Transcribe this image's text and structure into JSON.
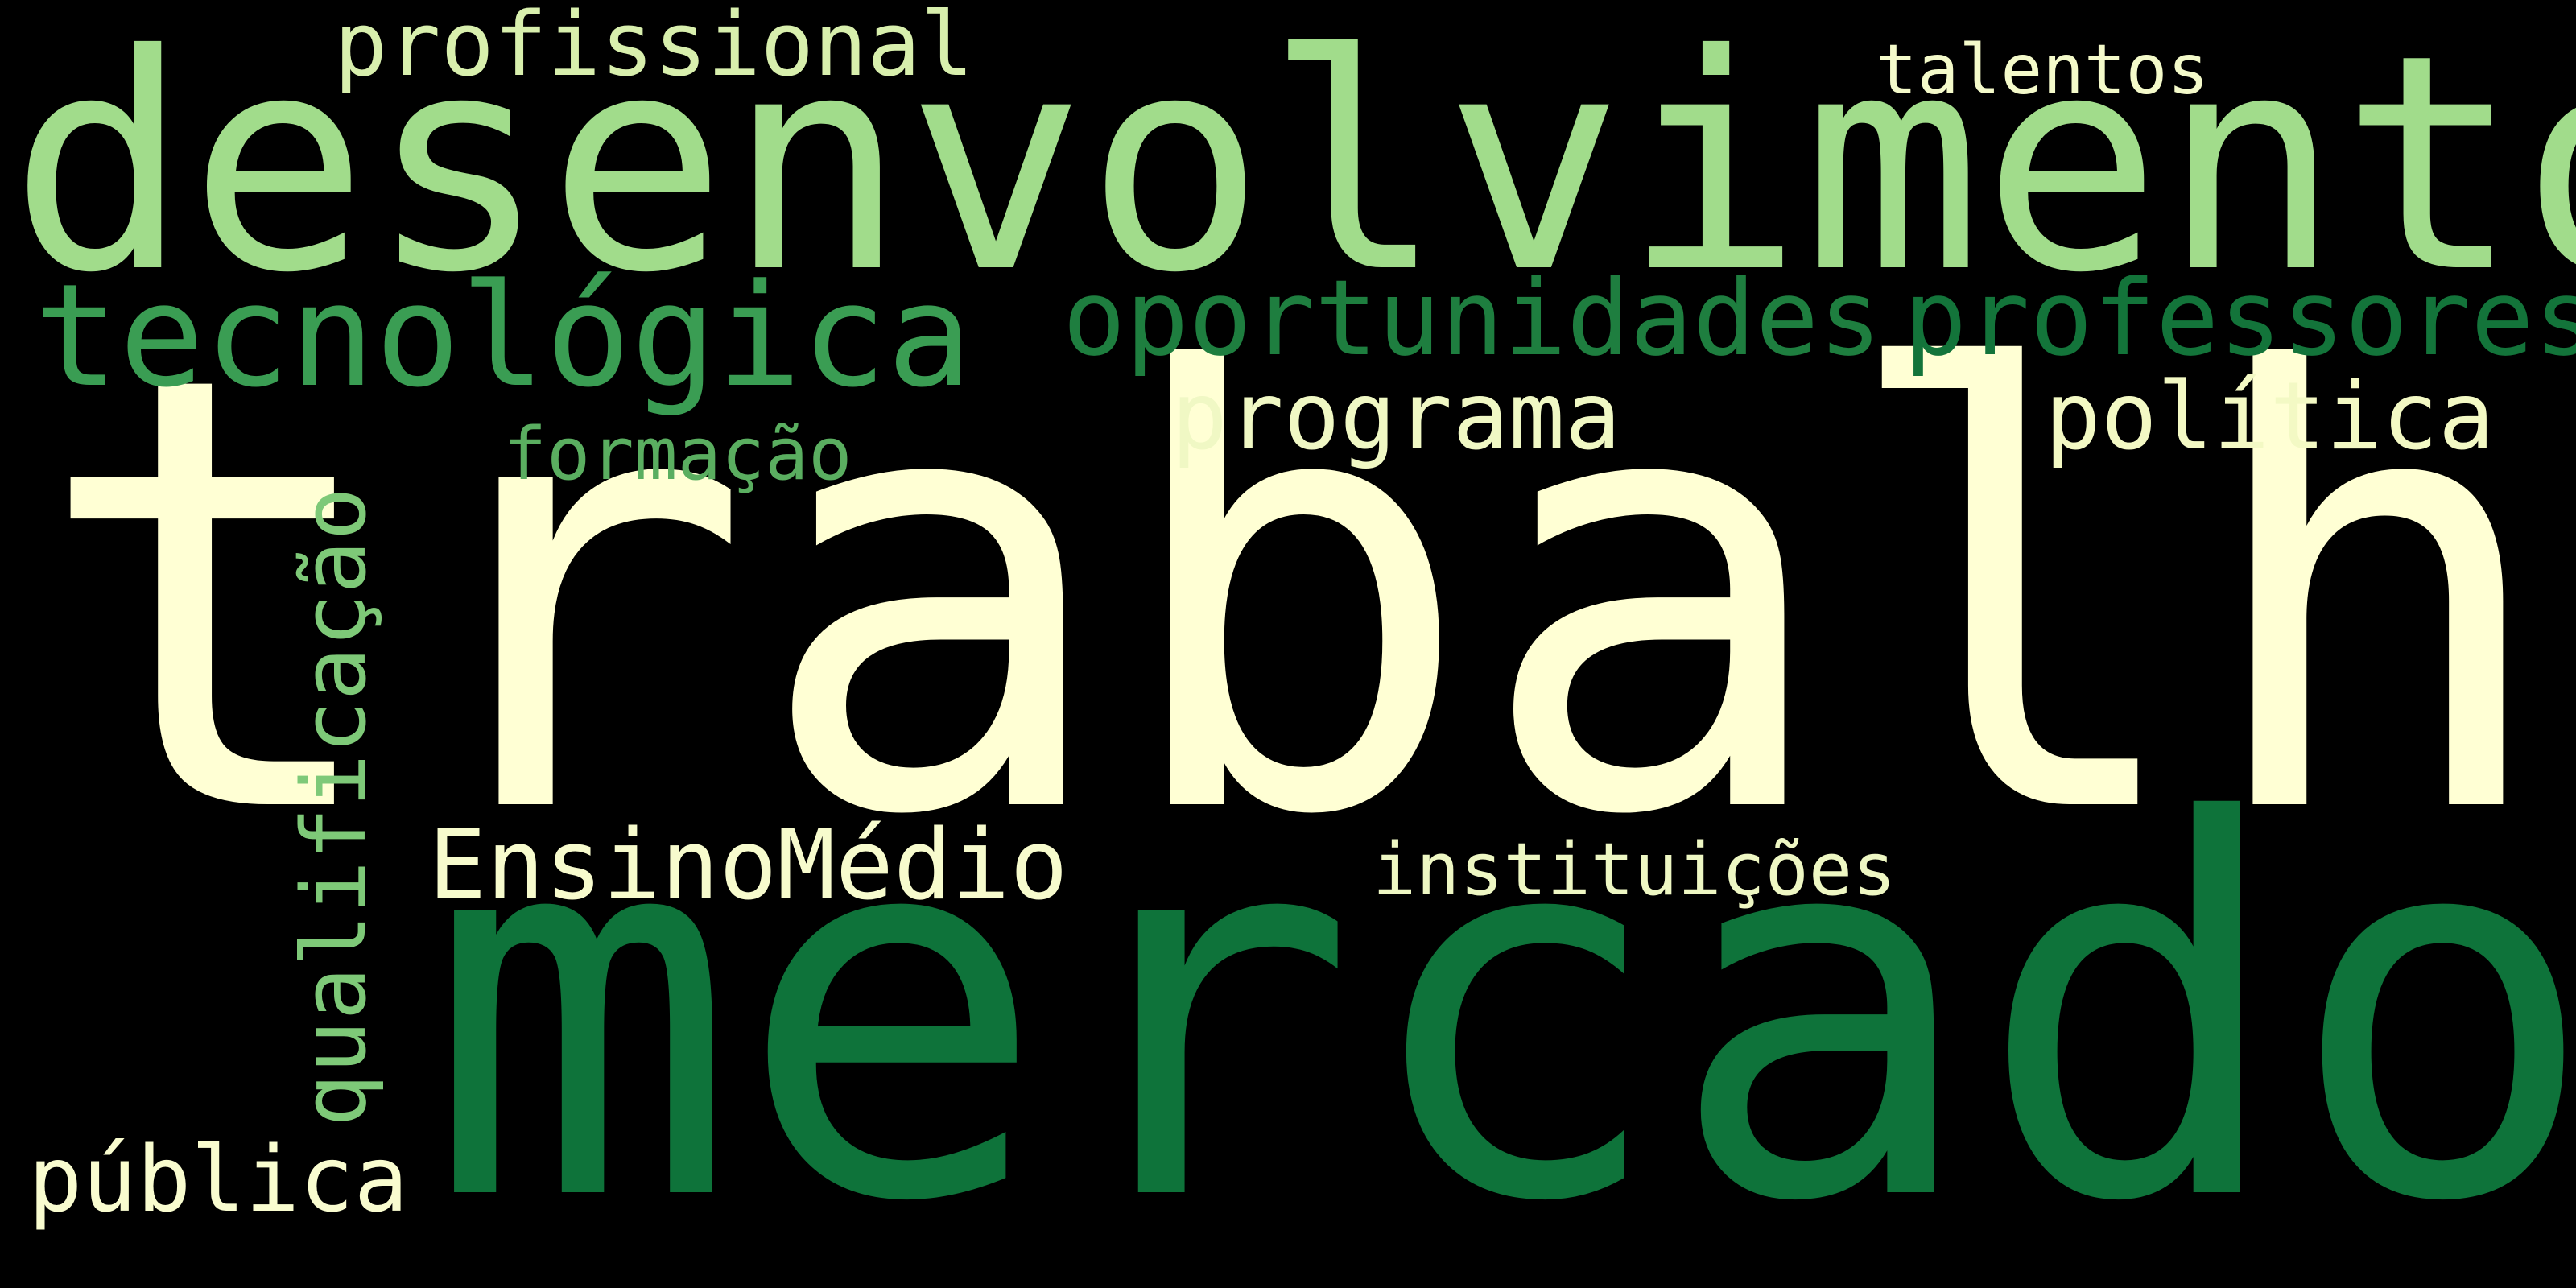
{
  "background": "#000000",
  "words": {
    "trabalho": {
      "text": "trabalho",
      "color": "#ffffd4"
    },
    "mercado": {
      "text": "mercado",
      "color": "#0e733a"
    },
    "desenvolvimento": {
      "text": "desenvolvimento",
      "color": "#a1dc8b"
    },
    "tecnologica": {
      "text": "tecnológica",
      "color": "#3a9d53"
    },
    "oportunidades": {
      "text": "oportunidades",
      "color": "#1e7e3f"
    },
    "professores": {
      "text": "professores",
      "color": "#13743a"
    },
    "programa": {
      "text": "programa",
      "color": "#f0f8c4"
    },
    "politica": {
      "text": "política",
      "color": "#f3f9c4"
    },
    "formacao": {
      "text": "formação",
      "color": "#5aae60"
    },
    "profissional": {
      "text": "profissional",
      "color": "#d8efad"
    },
    "talentos": {
      "text": "talentos",
      "color": "#f4faca"
    },
    "ensinomedio": {
      "text": "EnsinoMédio",
      "color": "#f7fbcd"
    },
    "instituicoes": {
      "text": "instituições",
      "color": "#eef7c3"
    },
    "publica": {
      "text": "pública",
      "color": "#f9fccf"
    },
    "qualificacao": {
      "text": "qualificação",
      "color": "#7ec978"
    }
  }
}
